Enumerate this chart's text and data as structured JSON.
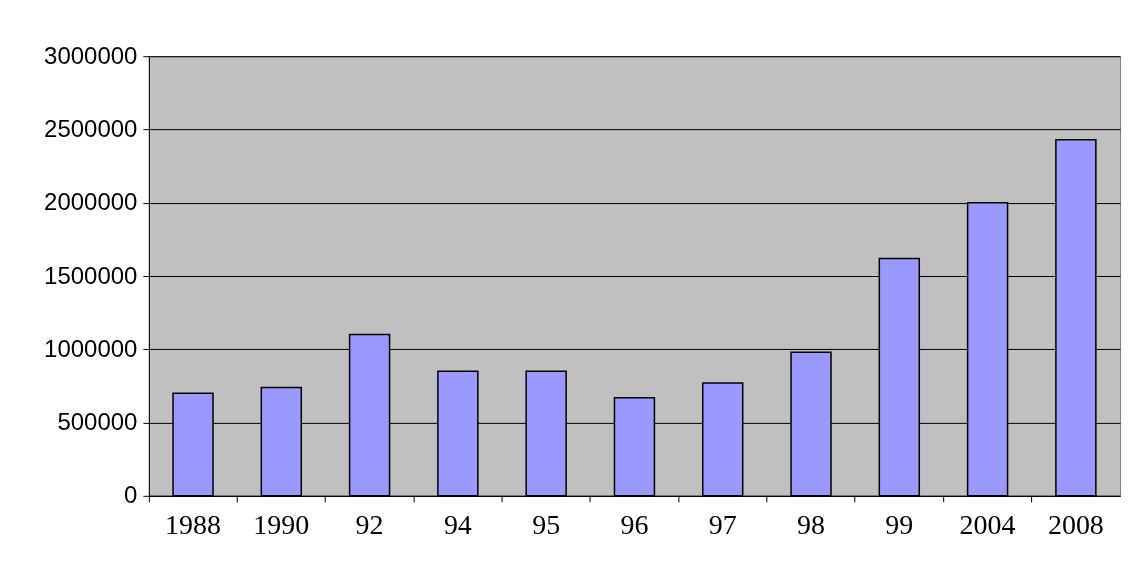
{
  "chart_data": {
    "type": "bar",
    "categories": [
      "1988",
      "1990",
      "92",
      "94",
      "95",
      "96",
      "97",
      "98",
      "99",
      "2004",
      "2008"
    ],
    "values": [
      700000,
      740000,
      1100000,
      850000,
      850000,
      670000,
      770000,
      980000,
      1620000,
      2000000,
      2430000
    ],
    "color": "#9999ff",
    "ylim": [
      0,
      3000000
    ],
    "yticks": [
      0,
      500000,
      1000000,
      1500000,
      2000000,
      2500000,
      3000000
    ],
    "grid": "y"
  }
}
